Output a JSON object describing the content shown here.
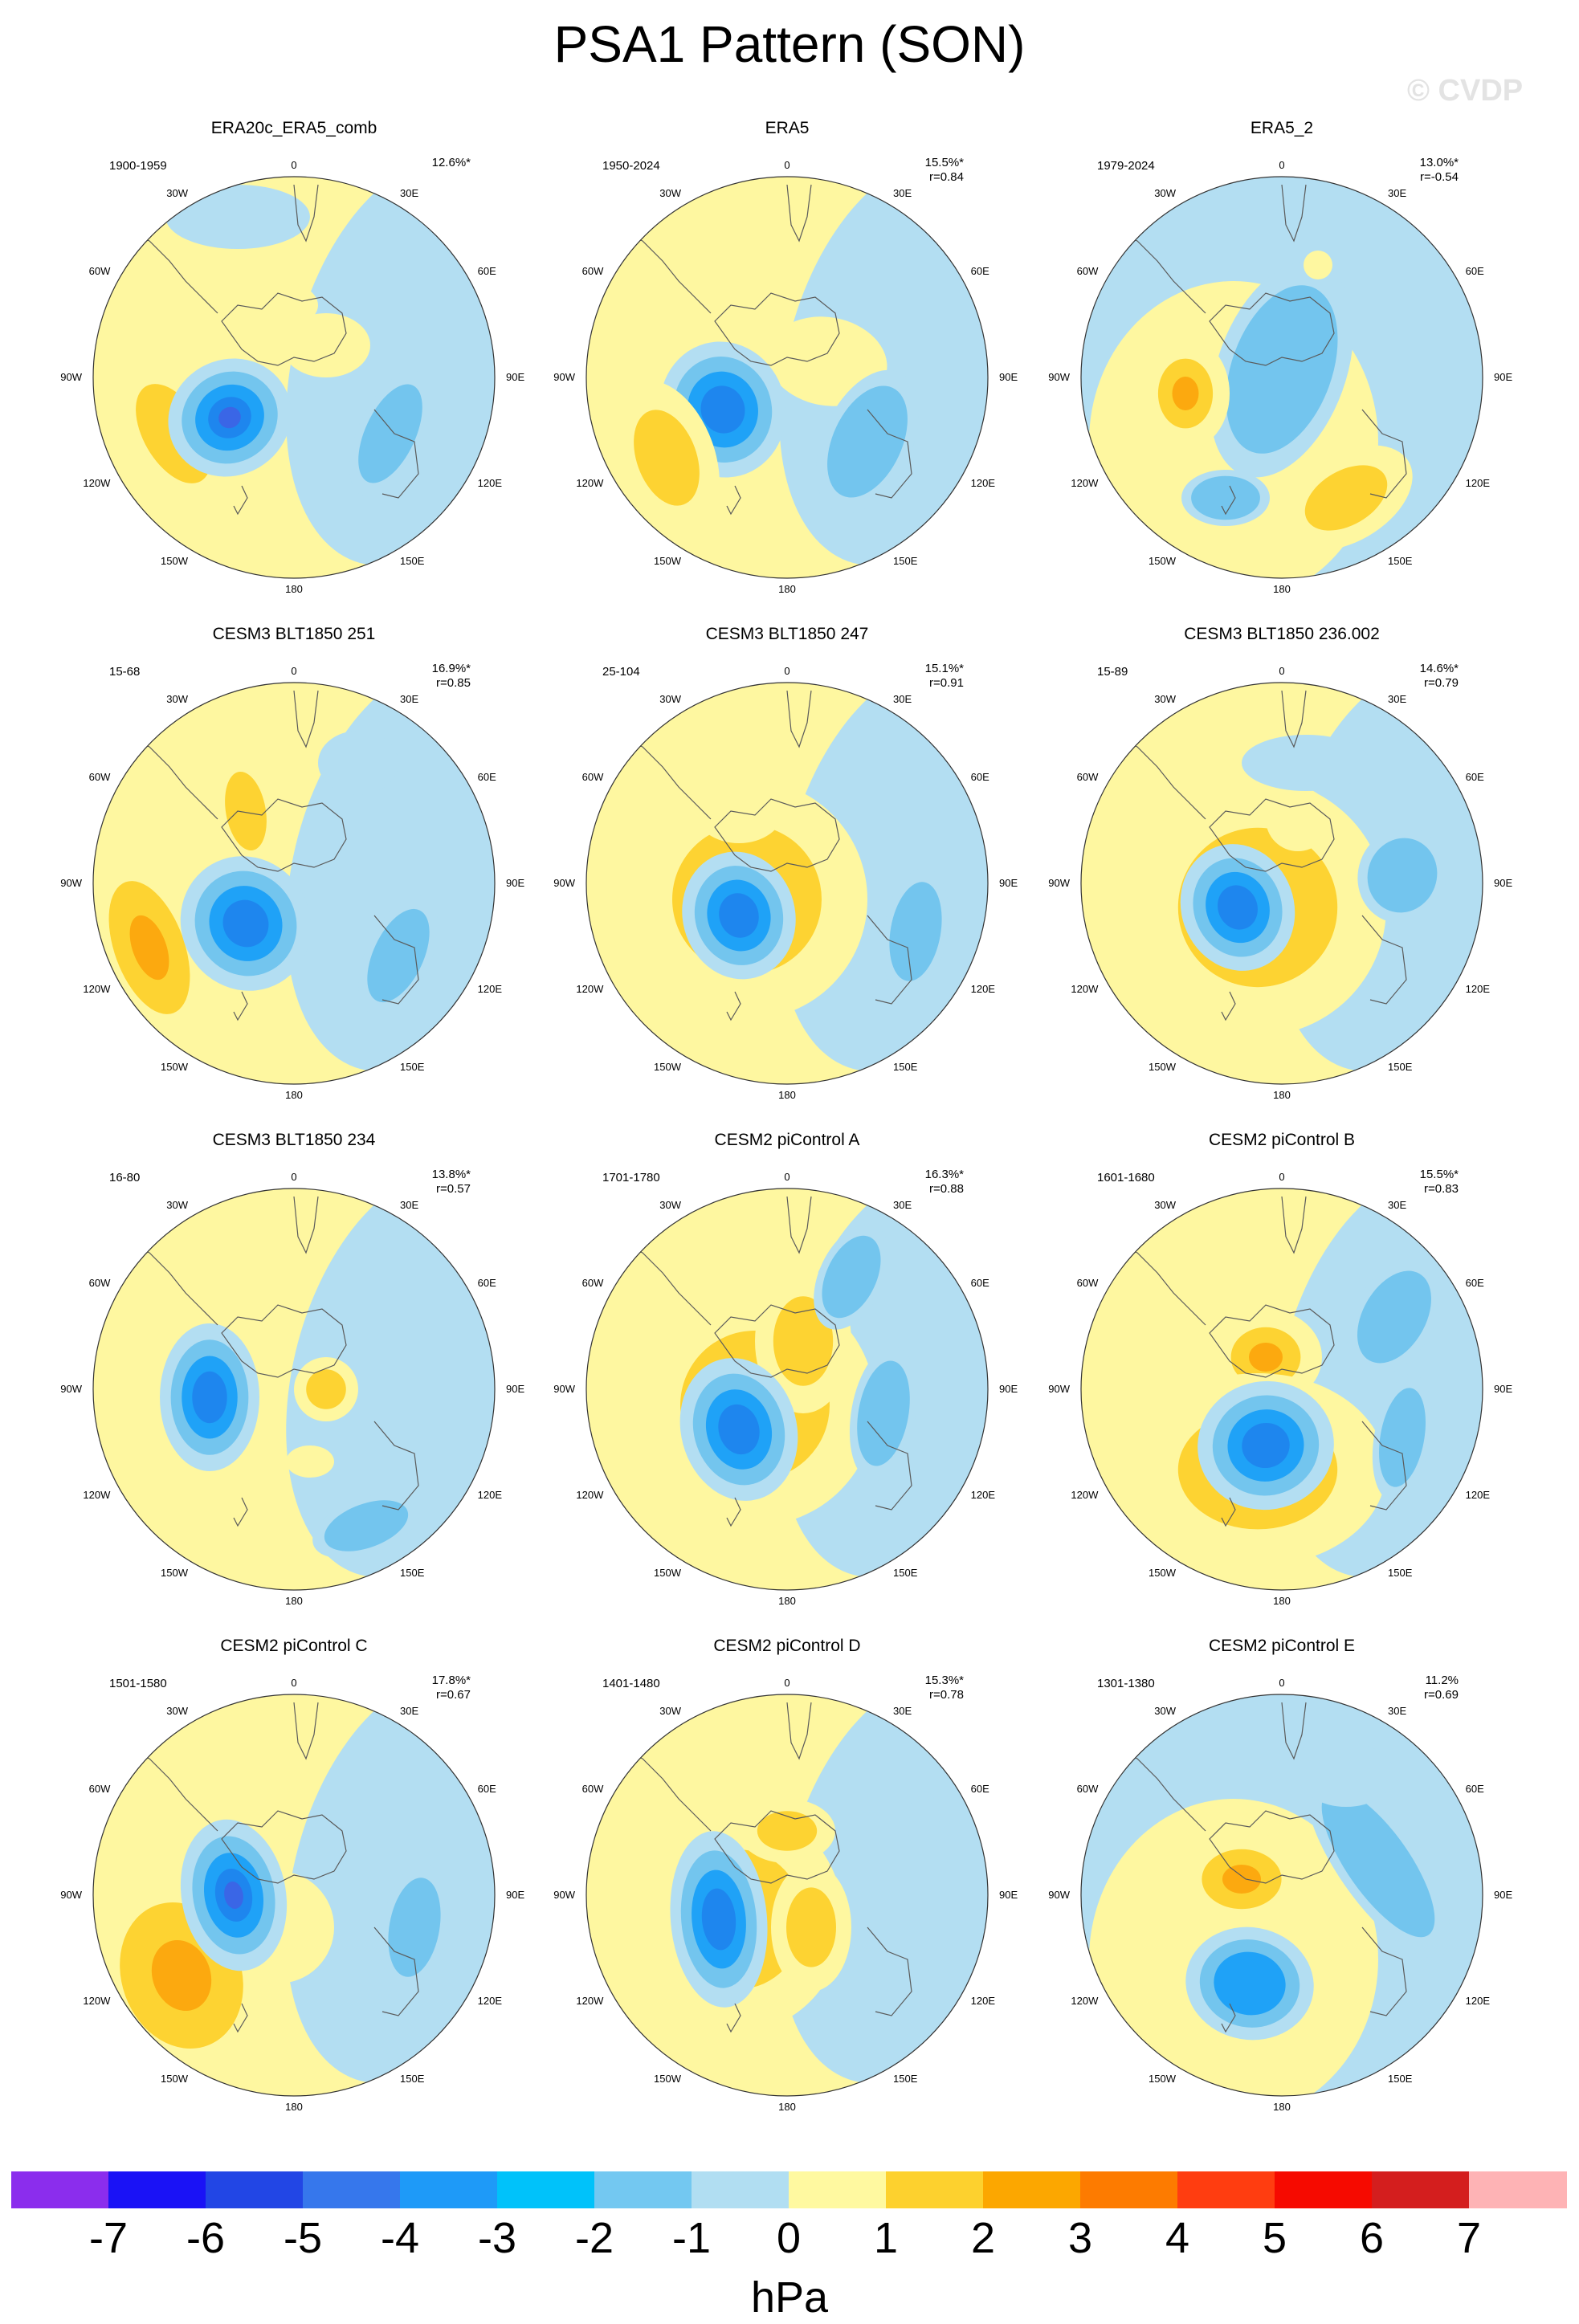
{
  "title": "PSA1 Pattern (SON)",
  "watermark": "© CVDP",
  "colors": {
    "pos1": "#fef7a0",
    "pos2": "#fdd332",
    "pos3": "#fca90f",
    "neg1": "#b3def2",
    "neg2": "#73c5ee",
    "neg3": "#1fa2f7",
    "neg4": "#1e86ee",
    "neg5": "#3a66e6",
    "coast": "#5a5a5a",
    "outline": "#333333"
  },
  "longitude_labels": [
    "0",
    "30E",
    "60E",
    "90E",
    "120E",
    "150E",
    "180",
    "150W",
    "120W",
    "90W",
    "60W",
    "30W"
  ],
  "chart_data": {
    "type": "polar-contour-map",
    "units": "hPa",
    "colorbar": {
      "labels": [
        "-7",
        "-6",
        "-5",
        "-4",
        "-3",
        "-2",
        "-1",
        "0",
        "1",
        "2",
        "3",
        "4",
        "5",
        "6",
        "7"
      ],
      "colors": [
        "#8b2ded",
        "#1a12f6",
        "#2246e5",
        "#3677ec",
        "#1e9af8",
        "#00c2fa",
        "#73c8f1",
        "#b1def2",
        "#fff9a0",
        "#fdd12e",
        "#fca700",
        "#fd7b00",
        "#ff3d10",
        "#f60a00",
        "#d41e1e",
        "#feb3b5"
      ]
    },
    "panels": [
      {
        "name": "ERA20c_ERA5_comb",
        "years": "1900-1959",
        "variance": "12.6%*",
        "r": ""
      },
      {
        "name": "ERA5",
        "years": "1950-2024",
        "variance": "15.5%*",
        "r": "r=0.84"
      },
      {
        "name": "ERA5_2",
        "years": "1979-2024",
        "variance": "13.0%*",
        "r": "r=-0.54"
      },
      {
        "name": "CESM3 BLT1850 251",
        "years": "15-68",
        "variance": "16.9%*",
        "r": "r=0.85"
      },
      {
        "name": "CESM3 BLT1850 247",
        "years": "25-104",
        "variance": "15.1%*",
        "r": "r=0.91"
      },
      {
        "name": "CESM3 BLT1850 236.002",
        "years": "15-89",
        "variance": "14.6%*",
        "r": "r=0.79"
      },
      {
        "name": "CESM3 BLT1850 234",
        "years": "16-80",
        "variance": "13.8%*",
        "r": "r=0.57"
      },
      {
        "name": "CESM2 piControl A",
        "years": "1701-1780",
        "variance": "16.3%*",
        "r": "r=0.88"
      },
      {
        "name": "CESM2 piControl B",
        "years": "1601-1680",
        "variance": "15.5%*",
        "r": "r=0.83"
      },
      {
        "name": "CESM2 piControl C",
        "years": "1501-1580",
        "variance": "17.8%*",
        "r": "r=0.67"
      },
      {
        "name": "CESM2 piControl D",
        "years": "1401-1480",
        "variance": "15.3%*",
        "r": "r=0.78"
      },
      {
        "name": "CESM2 piControl E",
        "years": "1301-1380",
        "variance": "11.2%",
        "r": "r=0.69"
      }
    ]
  }
}
